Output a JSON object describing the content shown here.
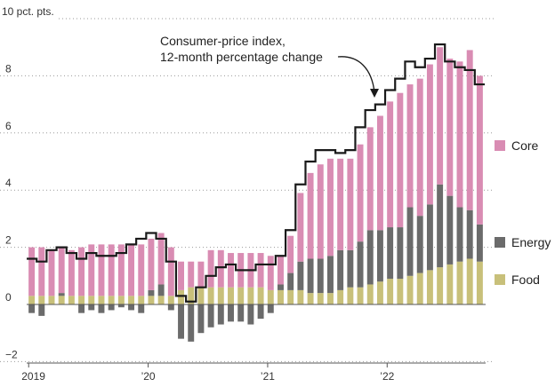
{
  "chart_data": {
    "type": "bar",
    "stacked": true,
    "title": "",
    "xlabel": "",
    "ylabel": "",
    "y_unit_label": "10 pct. pts.",
    "ylim": [
      -2,
      10
    ],
    "yticks": [
      -2,
      0,
      2,
      4,
      6,
      8
    ],
    "ytick_labels": [
      "−2",
      "0",
      "2",
      "4",
      "6",
      "8"
    ],
    "xticks": [
      {
        "label": "2019",
        "month_index": 0
      },
      {
        "label": "’20",
        "month_index": 12
      },
      {
        "label": "’21",
        "month_index": 24
      },
      {
        "label": "’22",
        "month_index": 36
      }
    ],
    "months": [
      "Jan 2019",
      "Feb 2019",
      "Mar 2019",
      "Apr 2019",
      "May 2019",
      "Jun 2019",
      "Jul 2019",
      "Aug 2019",
      "Sep 2019",
      "Oct 2019",
      "Nov 2019",
      "Dec 2019",
      "Jan 2020",
      "Feb 2020",
      "Mar 2020",
      "Apr 2020",
      "May 2020",
      "Jun 2020",
      "Jul 2020",
      "Aug 2020",
      "Sep 2020",
      "Oct 2020",
      "Nov 2020",
      "Dec 2020",
      "Jan 2021",
      "Feb 2021",
      "Mar 2021",
      "Apr 2021",
      "May 2021",
      "Jun 2021",
      "Jul 2021",
      "Aug 2021",
      "Sep 2021",
      "Oct 2021",
      "Nov 2021",
      "Dec 2021",
      "Jan 2022",
      "Feb 2022",
      "Mar 2022",
      "Apr 2022",
      "May 2022",
      "Jun 2022",
      "Jul 2022",
      "Aug 2022",
      "Sep 2022",
      "Oct 2022"
    ],
    "series": [
      {
        "name": "Food",
        "color": "#c8c07a",
        "values": [
          0.3,
          0.3,
          0.3,
          0.3,
          0.3,
          0.3,
          0.3,
          0.3,
          0.3,
          0.3,
          0.3,
          0.3,
          0.3,
          0.3,
          0.3,
          0.5,
          0.6,
          0.6,
          0.6,
          0.6,
          0.6,
          0.6,
          0.6,
          0.6,
          0.5,
          0.5,
          0.5,
          0.5,
          0.4,
          0.4,
          0.4,
          0.5,
          0.6,
          0.6,
          0.7,
          0.8,
          0.9,
          0.9,
          1.0,
          1.1,
          1.2,
          1.3,
          1.4,
          1.5,
          1.6,
          1.5
        ]
      },
      {
        "name": "Energy",
        "color": "#6b6b6b",
        "values": [
          -0.3,
          -0.4,
          0.0,
          0.1,
          0.0,
          -0.3,
          -0.2,
          -0.3,
          -0.2,
          -0.1,
          -0.2,
          -0.3,
          0.2,
          0.4,
          -0.2,
          -1.2,
          -1.3,
          -1.0,
          -0.8,
          -0.7,
          -0.6,
          -0.6,
          -0.7,
          -0.5,
          -0.3,
          0.2,
          0.6,
          1.0,
          1.2,
          1.2,
          1.3,
          1.4,
          1.3,
          1.6,
          1.9,
          1.8,
          1.8,
          1.8,
          2.4,
          2.0,
          2.3,
          2.9,
          2.4,
          1.9,
          1.7,
          1.3
        ]
      },
      {
        "name": "Core",
        "color": "#d98cb3",
        "values": [
          1.7,
          1.7,
          1.6,
          1.6,
          1.6,
          1.7,
          1.8,
          1.8,
          1.8,
          1.8,
          1.8,
          1.8,
          1.8,
          1.8,
          1.7,
          1.0,
          0.9,
          0.9,
          1.3,
          1.3,
          1.2,
          1.2,
          1.2,
          1.2,
          1.2,
          1.0,
          1.3,
          2.4,
          3.0,
          3.3,
          3.4,
          3.2,
          3.2,
          3.4,
          3.6,
          4.0,
          4.4,
          4.7,
          4.3,
          4.8,
          4.9,
          4.8,
          4.8,
          5.1,
          5.6,
          5.2
        ]
      }
    ],
    "cpi_line": {
      "name": "Consumer-price index, 12-month percentage change",
      "color": "#1a1a1a",
      "values": [
        1.6,
        1.5,
        1.9,
        2.0,
        1.8,
        1.6,
        1.8,
        1.7,
        1.7,
        1.8,
        2.1,
        2.3,
        2.5,
        2.3,
        1.5,
        0.3,
        0.1,
        0.6,
        1.0,
        1.3,
        1.4,
        1.2,
        1.2,
        1.4,
        1.4,
        1.7,
        2.6,
        4.2,
        5.0,
        5.4,
        5.4,
        5.3,
        5.4,
        6.2,
        6.8,
        7.0,
        7.5,
        7.9,
        8.5,
        8.3,
        8.6,
        9.1,
        8.5,
        8.3,
        8.2,
        7.7
      ]
    },
    "annotation": {
      "line1": "Consumer-price index,",
      "line2": "12-month percentage change"
    },
    "legend_order": [
      "Core",
      "Energy",
      "Food"
    ],
    "legend_placement": "right",
    "grid": true
  }
}
